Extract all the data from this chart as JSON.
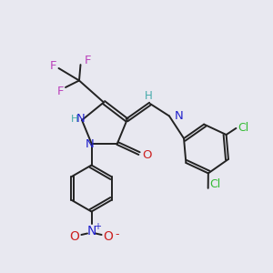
{
  "bg_color": "#e8e8f0",
  "bond_color": "#222222",
  "N_color": "#2222cc",
  "O_color": "#cc2222",
  "F_color": "#bb44bb",
  "Cl_color": "#33bb33",
  "H_color": "#44aaaa",
  "lw": 1.4,
  "xlim": [
    0,
    10
  ],
  "ylim": [
    0,
    10
  ]
}
